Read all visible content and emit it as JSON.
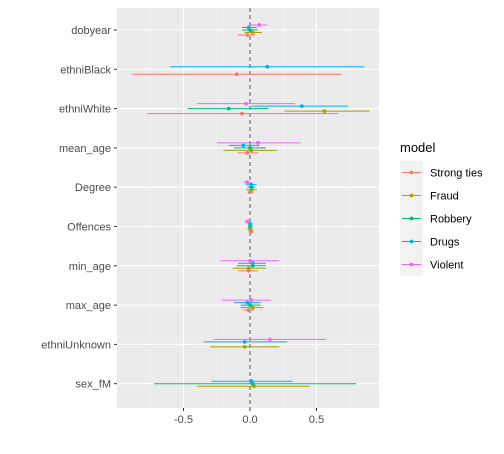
{
  "chart_data": {
    "type": "coefficient-plot",
    "title": "",
    "xlabel": "",
    "ylabel": "",
    "xlim": [
      -1.0,
      0.97
    ],
    "xticks": [
      -0.5,
      0.0,
      0.5
    ],
    "xtick_labels": [
      "-0.5",
      "0.0",
      "0.5"
    ],
    "reference_line": 0,
    "grid": true,
    "legend": {
      "title": "model",
      "position": "right",
      "entries": [
        "Strong ties",
        "Fraud",
        "Robbery",
        "Drugs",
        "Violent"
      ]
    },
    "categories": [
      "dobyear",
      "ethniBlack",
      "ethniWhite",
      "mean_age",
      "Degree",
      "Offences",
      "min_age",
      "max_age",
      "ethniUnknown",
      "sex_fM"
    ],
    "series": [
      {
        "name": "Strong ties",
        "color": "#F8766D",
        "points": [
          {
            "term": "dobyear",
            "estimate": -0.02,
            "low": -0.09,
            "high": 0.04
          },
          {
            "term": "ethniBlack",
            "estimate": -0.1,
            "low": -0.89,
            "high": 0.69
          },
          {
            "term": "ethniWhite",
            "estimate": -0.06,
            "low": -0.77,
            "high": 0.66
          },
          {
            "term": "mean_age",
            "estimate": -0.02,
            "low": -0.09,
            "high": 0.06
          },
          {
            "term": "Degree",
            "estimate": 0.0,
            "low": -0.02,
            "high": 0.03
          },
          {
            "term": "Offences",
            "estimate": 0.01,
            "low": -0.01,
            "high": 0.02
          },
          {
            "term": "min_age",
            "estimate": -0.01,
            "low": -0.09,
            "high": 0.06
          },
          {
            "term": "max_age",
            "estimate": -0.01,
            "low": -0.05,
            "high": 0.03
          }
        ]
      },
      {
        "name": "Fraud",
        "color": "#A3A500",
        "points": [
          {
            "term": "dobyear",
            "estimate": 0.02,
            "low": -0.04,
            "high": 0.09
          },
          {
            "term": "ethniWhite",
            "estimate": 0.56,
            "low": 0.26,
            "high": 0.9
          },
          {
            "term": "mean_age",
            "estimate": 0.01,
            "low": -0.2,
            "high": 0.2
          },
          {
            "term": "Degree",
            "estimate": 0.01,
            "low": -0.03,
            "high": 0.05
          },
          {
            "term": "Offences",
            "estimate": 0.0,
            "low": -0.02,
            "high": 0.02
          },
          {
            "term": "min_age",
            "estimate": -0.01,
            "low": -0.13,
            "high": 0.12
          },
          {
            "term": "max_age",
            "estimate": 0.02,
            "low": -0.07,
            "high": 0.1
          },
          {
            "term": "ethniUnknown",
            "estimate": -0.04,
            "low": -0.3,
            "high": 0.22
          },
          {
            "term": "sex_fM",
            "estimate": 0.03,
            "low": -0.4,
            "high": 0.45
          }
        ]
      },
      {
        "name": "Robbery",
        "color": "#00BF7D",
        "points": [
          {
            "term": "dobyear",
            "estimate": 0.0,
            "low": -0.06,
            "high": 0.06
          },
          {
            "term": "ethniWhite",
            "estimate": -0.16,
            "low": -0.47,
            "high": 0.14
          },
          {
            "term": "mean_age",
            "estimate": 0.0,
            "low": -0.12,
            "high": 0.12
          },
          {
            "term": "Degree",
            "estimate": 0.01,
            "low": -0.02,
            "high": 0.04
          },
          {
            "term": "Offences",
            "estimate": 0.0,
            "low": -0.01,
            "high": 0.02
          },
          {
            "term": "min_age",
            "estimate": 0.02,
            "low": -0.1,
            "high": 0.12
          },
          {
            "term": "max_age",
            "estimate": 0.0,
            "low": -0.07,
            "high": 0.08
          },
          {
            "term": "sex_fM",
            "estimate": 0.02,
            "low": -0.72,
            "high": 0.8
          }
        ]
      },
      {
        "name": "Drugs",
        "color": "#00B0F6",
        "points": [
          {
            "term": "dobyear",
            "estimate": -0.01,
            "low": -0.06,
            "high": 0.05
          },
          {
            "term": "ethniBlack",
            "estimate": 0.13,
            "low": -0.6,
            "high": 0.86
          },
          {
            "term": "ethniWhite",
            "estimate": 0.39,
            "low": 0.01,
            "high": 0.74
          },
          {
            "term": "mean_age",
            "estimate": -0.05,
            "low": -0.16,
            "high": 0.07
          },
          {
            "term": "Degree",
            "estimate": 0.01,
            "low": -0.03,
            "high": 0.05
          },
          {
            "term": "Offences",
            "estimate": 0.0,
            "low": -0.01,
            "high": 0.02
          },
          {
            "term": "min_age",
            "estimate": 0.02,
            "low": -0.09,
            "high": 0.12
          },
          {
            "term": "max_age",
            "estimate": -0.02,
            "low": -0.12,
            "high": 0.08
          },
          {
            "term": "ethniUnknown",
            "estimate": -0.04,
            "low": -0.35,
            "high": 0.28
          },
          {
            "term": "sex_fM",
            "estimate": 0.01,
            "low": -0.29,
            "high": 0.32
          }
        ]
      },
      {
        "name": "Violent",
        "color": "#E76BF3",
        "points": [
          {
            "term": "dobyear",
            "estimate": 0.07,
            "low": 0.0,
            "high": 0.13
          },
          {
            "term": "ethniWhite",
            "estimate": -0.03,
            "low": -0.4,
            "high": 0.34
          },
          {
            "term": "mean_age",
            "estimate": 0.06,
            "low": -0.25,
            "high": 0.38
          },
          {
            "term": "Degree",
            "estimate": -0.02,
            "low": -0.05,
            "high": 0.01
          },
          {
            "term": "Offences",
            "estimate": -0.02,
            "low": -0.04,
            "high": 0.0
          },
          {
            "term": "min_age",
            "estimate": 0.0,
            "low": -0.22,
            "high": 0.22
          },
          {
            "term": "max_age",
            "estimate": 0.01,
            "low": -0.21,
            "high": 0.16
          },
          {
            "term": "ethniUnknown",
            "estimate": 0.15,
            "low": -0.27,
            "high": 0.57
          }
        ]
      }
    ]
  }
}
